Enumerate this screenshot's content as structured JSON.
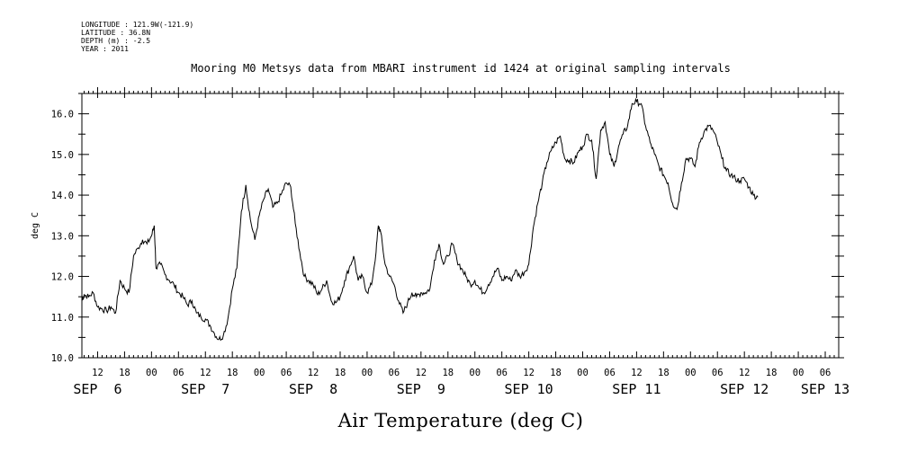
{
  "header": {
    "longitude": "LONGITUDE : 121.9W(-121.9)",
    "latitude": "LATITUDE : 36.8N",
    "depth": "DEPTH (m) : -2.5",
    "year": "YEAR : 2011"
  },
  "chart_data": {
    "type": "line",
    "title": "Mooring M0 Metsys data from MBARI instrument id 1424 at original sampling intervals",
    "xlabel": "Air Temperature (deg C)",
    "ylabel": "deg C",
    "ylim": [
      10.0,
      16.5
    ],
    "xlim_hours": [
      8.5,
      177
    ],
    "y_ticks": [
      "10.0",
      "11.0",
      "12.0",
      "13.0",
      "14.0",
      "15.0",
      "16.0"
    ],
    "hour_labels": [
      {
        "h": 12,
        "label": "12"
      },
      {
        "h": 18,
        "label": "18"
      },
      {
        "h": 24,
        "label": "00"
      },
      {
        "h": 30,
        "label": "06"
      },
      {
        "h": 36,
        "label": "12"
      },
      {
        "h": 42,
        "label": "18"
      },
      {
        "h": 48,
        "label": "00"
      },
      {
        "h": 54,
        "label": "06"
      },
      {
        "h": 60,
        "label": "12"
      },
      {
        "h": 66,
        "label": "18"
      },
      {
        "h": 72,
        "label": "00"
      },
      {
        "h": 78,
        "label": "06"
      },
      {
        "h": 84,
        "label": "12"
      },
      {
        "h": 90,
        "label": "18"
      },
      {
        "h": 96,
        "label": "00"
      },
      {
        "h": 102,
        "label": "06"
      },
      {
        "h": 108,
        "label": "12"
      },
      {
        "h": 114,
        "label": "18"
      },
      {
        "h": 120,
        "label": "00"
      },
      {
        "h": 126,
        "label": "06"
      },
      {
        "h": 132,
        "label": "12"
      },
      {
        "h": 138,
        "label": "18"
      },
      {
        "h": 144,
        "label": "00"
      },
      {
        "h": 150,
        "label": "06"
      },
      {
        "h": 156,
        "label": "12"
      },
      {
        "h": 162,
        "label": "18"
      },
      {
        "h": 168,
        "label": "00"
      },
      {
        "h": 174,
        "label": "06"
      }
    ],
    "day_labels": [
      {
        "h": 12,
        "label": "SEP  6"
      },
      {
        "h": 36,
        "label": "SEP  7"
      },
      {
        "h": 60,
        "label": "SEP  8"
      },
      {
        "h": 84,
        "label": "SEP  9"
      },
      {
        "h": 108,
        "label": "SEP 10"
      },
      {
        "h": 132,
        "label": "SEP 11"
      },
      {
        "h": 156,
        "label": "SEP 12"
      },
      {
        "h": 174,
        "label": "SEP 13"
      }
    ],
    "series": [
      {
        "points": [
          [
            8.5,
            11.4
          ],
          [
            9,
            11.55
          ],
          [
            10,
            11.5
          ],
          [
            11,
            11.6
          ],
          [
            12,
            11.25
          ],
          [
            13,
            11.2
          ],
          [
            14,
            11.15
          ],
          [
            15,
            11.25
          ],
          [
            16,
            11.1
          ],
          [
            17,
            11.9
          ],
          [
            18,
            11.7
          ],
          [
            19,
            11.6
          ],
          [
            20,
            12.5
          ],
          [
            21,
            12.7
          ],
          [
            22,
            12.9
          ],
          [
            23,
            12.8
          ],
          [
            24,
            13.0
          ],
          [
            24.6,
            13.25
          ],
          [
            25,
            12.2
          ],
          [
            26,
            12.3
          ],
          [
            27,
            12.05
          ],
          [
            28,
            11.9
          ],
          [
            29,
            11.8
          ],
          [
            30,
            11.6
          ],
          [
            31,
            11.5
          ],
          [
            32,
            11.3
          ],
          [
            33,
            11.4
          ],
          [
            34,
            11.1
          ],
          [
            35,
            11.0
          ],
          [
            36,
            10.95
          ],
          [
            37,
            10.8
          ],
          [
            38,
            10.6
          ],
          [
            39,
            10.45
          ],
          [
            40,
            10.55
          ],
          [
            41,
            10.95
          ],
          [
            42,
            11.7
          ],
          [
            43,
            12.2
          ],
          [
            44,
            13.6
          ],
          [
            45,
            14.25
          ],
          [
            46,
            13.4
          ],
          [
            47,
            12.9
          ],
          [
            48,
            13.5
          ],
          [
            49,
            13.9
          ],
          [
            50,
            14.15
          ],
          [
            51,
            13.7
          ],
          [
            52,
            13.8
          ],
          [
            53,
            14.05
          ],
          [
            54,
            14.3
          ],
          [
            55,
            14.2
          ],
          [
            56,
            13.3
          ],
          [
            57,
            12.6
          ],
          [
            58,
            12.0
          ],
          [
            59,
            11.9
          ],
          [
            60,
            11.8
          ],
          [
            61,
            11.55
          ],
          [
            62,
            11.7
          ],
          [
            63,
            11.9
          ],
          [
            64,
            11.4
          ],
          [
            65,
            11.35
          ],
          [
            66,
            11.5
          ],
          [
            67,
            11.9
          ],
          [
            68,
            12.2
          ],
          [
            69,
            12.5
          ],
          [
            70,
            11.9
          ],
          [
            71,
            12.0
          ],
          [
            72,
            11.6
          ],
          [
            73,
            11.8
          ],
          [
            74,
            12.6
          ],
          [
            74.5,
            13.25
          ],
          [
            75,
            13.1
          ],
          [
            76,
            12.3
          ],
          [
            77,
            12.0
          ],
          [
            78,
            11.8
          ],
          [
            79,
            11.4
          ],
          [
            80,
            11.1
          ],
          [
            81,
            11.35
          ],
          [
            82,
            11.6
          ],
          [
            83,
            11.5
          ],
          [
            84,
            11.6
          ],
          [
            85,
            11.6
          ],
          [
            86,
            11.7
          ],
          [
            87,
            12.4
          ],
          [
            88,
            12.8
          ],
          [
            89,
            12.3
          ],
          [
            90,
            12.5
          ],
          [
            91,
            12.8
          ],
          [
            92,
            12.4
          ],
          [
            93,
            12.2
          ],
          [
            94,
            12.0
          ],
          [
            95,
            11.8
          ],
          [
            96,
            11.9
          ],
          [
            97,
            11.7
          ],
          [
            98,
            11.6
          ],
          [
            99,
            11.8
          ],
          [
            100,
            12.0
          ],
          [
            101,
            12.2
          ],
          [
            102,
            11.9
          ],
          [
            103,
            12.0
          ],
          [
            104,
            11.9
          ],
          [
            105,
            12.15
          ],
          [
            106,
            12.0
          ],
          [
            107,
            12.1
          ],
          [
            108,
            12.3
          ],
          [
            109,
            13.2
          ],
          [
            110,
            13.8
          ],
          [
            111,
            14.3
          ],
          [
            112,
            14.8
          ],
          [
            113,
            15.1
          ],
          [
            114,
            15.3
          ],
          [
            115,
            15.45
          ],
          [
            116,
            14.9
          ],
          [
            117,
            14.85
          ],
          [
            118,
            14.8
          ],
          [
            119,
            15.05
          ],
          [
            120,
            15.2
          ],
          [
            121,
            15.5
          ],
          [
            122,
            15.35
          ],
          [
            123,
            14.4
          ],
          [
            124,
            15.6
          ],
          [
            125,
            15.8
          ],
          [
            126,
            15.0
          ],
          [
            127,
            14.7
          ],
          [
            128,
            15.2
          ],
          [
            129,
            15.5
          ],
          [
            130,
            15.7
          ],
          [
            131,
            16.25
          ],
          [
            132,
            16.3
          ],
          [
            133,
            16.25
          ],
          [
            134,
            15.7
          ],
          [
            135,
            15.3
          ],
          [
            136,
            15.0
          ],
          [
            137,
            14.7
          ],
          [
            138,
            14.5
          ],
          [
            139,
            14.3
          ],
          [
            140,
            13.8
          ],
          [
            141,
            13.65
          ],
          [
            142,
            14.3
          ],
          [
            143,
            14.9
          ],
          [
            144,
            14.9
          ],
          [
            145,
            14.7
          ],
          [
            146,
            15.3
          ],
          [
            147,
            15.55
          ],
          [
            148,
            15.7
          ],
          [
            149,
            15.6
          ],
          [
            150,
            15.3
          ],
          [
            151,
            14.9
          ],
          [
            152,
            14.6
          ],
          [
            153,
            14.5
          ],
          [
            154,
            14.4
          ],
          [
            155,
            14.35
          ],
          [
            156,
            14.4
          ],
          [
            157,
            14.2
          ],
          [
            158,
            14.0
          ],
          [
            159,
            13.95
          ]
        ]
      }
    ]
  }
}
